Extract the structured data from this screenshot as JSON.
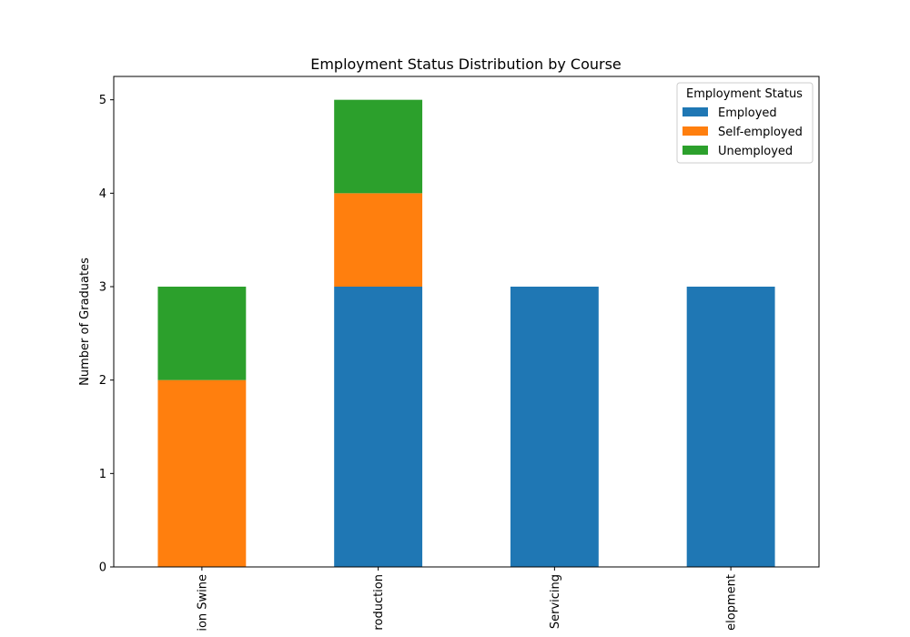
{
  "chart_data": {
    "type": "bar",
    "stacked": true,
    "title": "Employment Status Distribution by Course",
    "xlabel": "",
    "ylabel": "Number of Graduates",
    "categories": [
      "ion Swine",
      "roduction",
      "Servicing",
      "elopment"
    ],
    "ylim": [
      0,
      5.25
    ],
    "yticks": [
      "0",
      "1",
      "2",
      "3",
      "4",
      "5"
    ],
    "grid": false,
    "legend": {
      "title": "Employment Status",
      "placement": "top-right"
    },
    "series": [
      {
        "name": "Employed",
        "color": "#1f77b4",
        "values": [
          0,
          3,
          3,
          3
        ]
      },
      {
        "name": "Self-employed",
        "color": "#ff7f0e",
        "values": [
          2,
          1,
          0,
          0
        ]
      },
      {
        "name": "Unemployed",
        "color": "#2ca02c",
        "values": [
          1,
          1,
          0,
          0
        ]
      }
    ]
  }
}
